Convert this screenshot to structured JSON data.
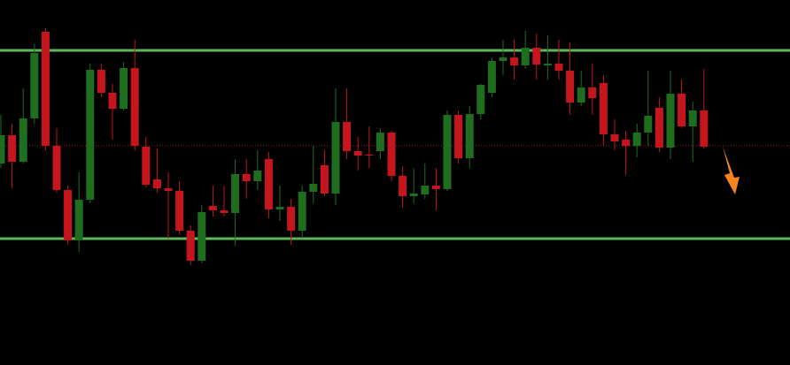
{
  "chart_data": {
    "type": "candlestick",
    "ylim": [
      0,
      413
    ],
    "up_color": "#1f6e1f",
    "down_color": "#c4161c",
    "background": "#000000",
    "levels": [
      {
        "value": 356,
        "color": "#5cb85c"
      },
      {
        "value": 143,
        "color": "#5cb85c"
      }
    ],
    "price_line": {
      "value": 248,
      "color": "#8b2a1a"
    },
    "open": [
      228,
      260,
      230,
      279,
      377,
      248,
      198,
      141,
      187,
      334,
      308,
      290,
      336,
      247,
      210,
      200,
      197,
      152,
      118,
      180,
      175,
      172,
      216,
      208,
      233,
      176,
      179,
      152,
      196,
      226,
      194,
      275,
      242,
      238,
      242,
      263,
      214,
      191,
      193,
      203,
      199,
      283,
      234,
      284,
      308,
      344,
      348,
      339,
      359,
      339,
      341,
      333,
      297,
      314,
      319,
      261,
      255,
      248,
      263,
      291,
      246,
      307,
      270,
      288
    ],
    "high": [
      283,
      273,
      313,
      363,
      381,
      268,
      203,
      218,
      341,
      341,
      318,
      343,
      368,
      258,
      245,
      218,
      208,
      158,
      181,
      203,
      203,
      233,
      233,
      243,
      241,
      203,
      188,
      203,
      248,
      243,
      313,
      313,
      258,
      270,
      268,
      265,
      225,
      223,
      228,
      223,
      288,
      288,
      293,
      318,
      348,
      368,
      368,
      378,
      375,
      373,
      368,
      365,
      333,
      341,
      328,
      278,
      265,
      273,
      333,
      303,
      333,
      323,
      298,
      335
    ],
    "low": [
      223,
      200,
      228,
      273,
      243,
      195,
      136,
      128,
      183,
      303,
      255,
      288,
      243,
      201,
      195,
      143,
      148,
      113,
      115,
      168,
      168,
      135,
      188,
      198,
      166,
      163,
      136,
      143,
      183,
      191,
      181,
      233,
      220,
      223,
      233,
      208,
      178,
      183,
      188,
      175,
      197,
      228,
      223,
      278,
      303,
      328,
      323,
      335,
      323,
      323,
      323,
      283,
      293,
      283,
      248,
      243,
      215,
      235,
      248,
      241,
      233,
      268,
      230,
      245
    ],
    "close": [
      260,
      230,
      279,
      353,
      248,
      198,
      141,
      187,
      334,
      308,
      290,
      336,
      248,
      204,
      200,
      197,
      152,
      118,
      173,
      175,
      172,
      216,
      208,
      220,
      176,
      179,
      152,
      196,
      205,
      194,
      275,
      242,
      237,
      237,
      263,
      214,
      191,
      194,
      203,
      199,
      283,
      234,
      284,
      317,
      344,
      348,
      339,
      359,
      340,
      341,
      333,
      297,
      314,
      302,
      261,
      253,
      248,
      263,
      282,
      246,
      307,
      270,
      288,
      247
    ]
  }
}
